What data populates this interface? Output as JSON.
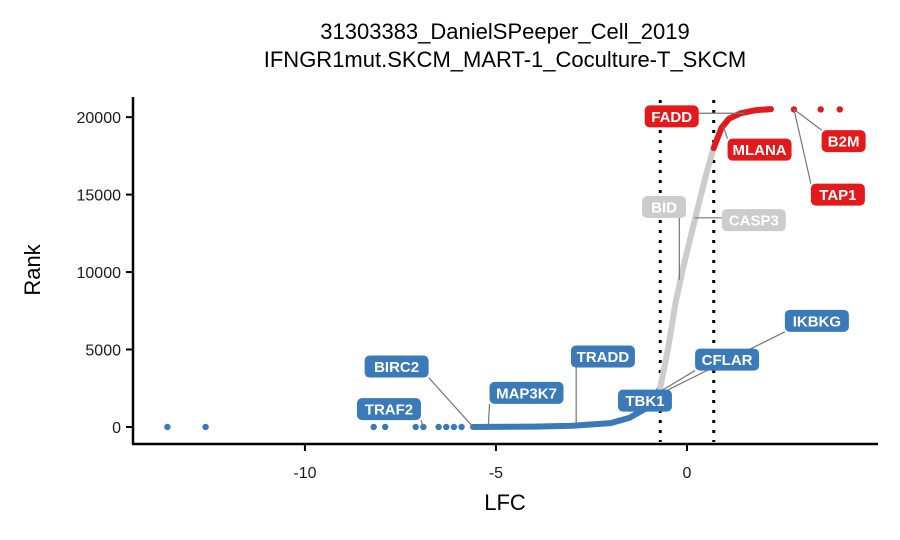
{
  "chart_data": {
    "type": "scatter",
    "title": "31303383_DanielSPeeper_Cell_2019",
    "subtitle": "IFNGR1mut.SKCM_MART-1_Coculture-T_SKCM",
    "xlabel": "LFC",
    "ylabel": "Rank",
    "xlim": [
      -14.5,
      5.0
    ],
    "ylim": [
      -1100,
      21300
    ],
    "x_ticks": [
      -10,
      -5,
      0
    ],
    "x_tick_labels": [
      "-10",
      "-5",
      "0"
    ],
    "y_ticks": [
      0,
      5000,
      10000,
      15000,
      20000
    ],
    "y_tick_labels": [
      "0",
      "5000",
      "10000",
      "15000",
      "20000"
    ],
    "thresholds": [
      -0.7,
      0.7
    ],
    "grid": false,
    "colors": {
      "depleted": "#3a7ab8",
      "neutral": "#cccccc",
      "enriched": "#e31a1c"
    },
    "curve": {
      "depleted": [
        [
          -5.6,
          0
        ],
        [
          -4,
          20
        ],
        [
          -3,
          80
        ],
        [
          -2,
          250
        ],
        [
          -1.5,
          600
        ],
        [
          -1,
          1300
        ],
        [
          -0.7,
          2500
        ]
      ],
      "neutral": [
        [
          -0.7,
          2500
        ],
        [
          -0.5,
          5000
        ],
        [
          -0.3,
          8000
        ],
        [
          -0.1,
          10300
        ],
        [
          0.1,
          12300
        ],
        [
          0.3,
          14300
        ],
        [
          0.5,
          16300
        ],
        [
          0.7,
          18000
        ]
      ],
      "enriched": [
        [
          0.7,
          18000
        ],
        [
          0.9,
          19300
        ],
        [
          1.1,
          19900
        ],
        [
          1.4,
          20250
        ],
        [
          1.8,
          20450
        ],
        [
          2.2,
          20520
        ]
      ]
    },
    "outliers": [
      {
        "x": -13.6,
        "y": 0,
        "group": "depleted"
      },
      {
        "x": -12.6,
        "y": 0,
        "group": "depleted"
      },
      {
        "x": -8.2,
        "y": 0,
        "group": "depleted"
      },
      {
        "x": -7.9,
        "y": 0,
        "group": "depleted"
      },
      {
        "x": -7.1,
        "y": 0,
        "group": "depleted"
      },
      {
        "x": -6.9,
        "y": 0,
        "group": "depleted"
      },
      {
        "x": -6.5,
        "y": 0,
        "group": "depleted"
      },
      {
        "x": -6.3,
        "y": 0,
        "group": "depleted"
      },
      {
        "x": -6.1,
        "y": 0,
        "group": "depleted"
      },
      {
        "x": -5.9,
        "y": 0,
        "group": "depleted"
      },
      {
        "x": 2.1,
        "y": 20500,
        "group": "enriched"
      },
      {
        "x": 2.8,
        "y": 20500,
        "group": "enriched"
      },
      {
        "x": 3.5,
        "y": 20500,
        "group": "enriched"
      },
      {
        "x": 4.0,
        "y": 20500,
        "group": "enriched"
      }
    ],
    "labels": [
      {
        "text": "FADD",
        "group": "enriched",
        "point": [
          1.5,
          20250
        ],
        "label": [
          -0.4,
          20050
        ]
      },
      {
        "text": "MLANA",
        "group": "enriched",
        "point": [
          0.95,
          19400
        ],
        "label": [
          1.9,
          17900
        ]
      },
      {
        "text": "B2M",
        "group": "enriched",
        "point": [
          2.8,
          20500
        ],
        "label": [
          4.1,
          18450
        ]
      },
      {
        "text": "TAP1",
        "group": "enriched",
        "point": [
          2.8,
          20500
        ],
        "label": [
          3.95,
          15000
        ]
      },
      {
        "text": "BID",
        "group": "neutral",
        "point": [
          -0.2,
          9500
        ],
        "label": [
          -0.6,
          14200
        ]
      },
      {
        "text": "CASP3",
        "group": "neutral",
        "point": [
          0.2,
          13500
        ],
        "label": [
          1.75,
          13350
        ]
      },
      {
        "text": "IKBKG",
        "group": "depleted",
        "point": [
          -0.9,
          1900
        ],
        "label": [
          3.4,
          6850
        ]
      },
      {
        "text": "CFLAR",
        "group": "depleted",
        "point": [
          -0.9,
          2000
        ],
        "label": [
          1.05,
          4350
        ]
      },
      {
        "text": "TRADD",
        "group": "depleted",
        "point": [
          -2.9,
          150
        ],
        "label": [
          -2.2,
          4550
        ]
      },
      {
        "text": "BIRC2",
        "group": "depleted",
        "point": [
          -5.6,
          0
        ],
        "label": [
          -7.6,
          3900
        ]
      },
      {
        "text": "MAP3K7",
        "group": "depleted",
        "point": [
          -5.2,
          15
        ],
        "label": [
          -4.2,
          2200
        ]
      },
      {
        "text": "TBK1",
        "group": "depleted",
        "point": [
          -1.0,
          1400
        ],
        "label": [
          -1.1,
          1700
        ]
      },
      {
        "text": "TRAF2",
        "group": "depleted",
        "point": [
          -6.9,
          0
        ],
        "label": [
          -7.8,
          1150
        ]
      }
    ]
  }
}
